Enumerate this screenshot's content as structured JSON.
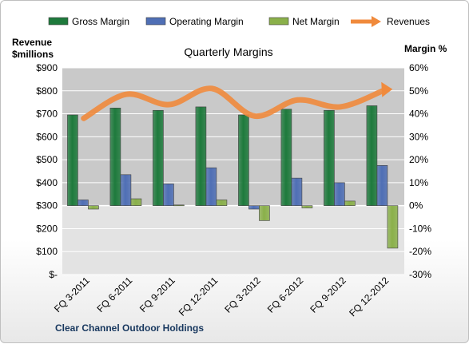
{
  "chart_data": {
    "type": "bar",
    "title": "Quarterly Margins",
    "categories": [
      "FQ 3-2011",
      "FQ 6-2011",
      "FQ 9-2011",
      "FQ 12-2011",
      "FQ 3-2012",
      "FQ 6-2012",
      "FQ 9-2012",
      "FQ 12-2012"
    ],
    "series": [
      {
        "name": "Gross Margin",
        "axis": "right",
        "kind": "bar",
        "color": "#1e7a3c",
        "values": [
          39.5,
          42.5,
          41.5,
          43.0,
          39.5,
          42.0,
          41.5,
          43.5
        ]
      },
      {
        "name": "Operating Margin",
        "axis": "right",
        "kind": "bar",
        "color": "#4f6fb5",
        "values": [
          2.5,
          13.5,
          9.5,
          16.5,
          -1.5,
          12.0,
          10.0,
          17.5
        ]
      },
      {
        "name": "Net Margin",
        "axis": "right",
        "kind": "bar",
        "color": "#8ab04a",
        "values": [
          -1.5,
          3.0,
          0.3,
          2.5,
          -6.5,
          -1.0,
          2.0,
          -18.5
        ]
      },
      {
        "name": "Revenues",
        "axis": "left",
        "kind": "line",
        "color": "#f08a3c",
        "values": [
          680,
          785,
          740,
          810,
          690,
          760,
          730,
          800
        ]
      }
    ],
    "left_axis": {
      "title_line1": "Revenue",
      "title_line2": "$millions",
      "min": 0,
      "max": 900,
      "step": 100,
      "tick_labels": [
        "$-",
        "$100",
        "$200",
        "$300",
        "$400",
        "$500",
        "$600",
        "$700",
        "$800",
        "$900"
      ]
    },
    "right_axis": {
      "title": "Margin %",
      "min": -30,
      "max": 60,
      "step": 10,
      "tick_labels": [
        "-30%",
        "-20%",
        "-10%",
        "0%",
        "10%",
        "20%",
        "30%",
        "40%",
        "50%",
        "60%"
      ]
    },
    "grid": true,
    "legend_position": "top",
    "footer": "Clear Channel Outdoor Holdings"
  }
}
